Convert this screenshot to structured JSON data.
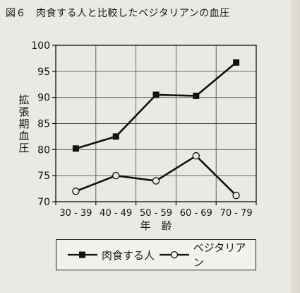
{
  "figure": {
    "number": "図６",
    "title": "肉食する人と比較したベジタリアンの血圧"
  },
  "chart_data": {
    "type": "line",
    "title": "肉食する人と比較したベジタリアンの血圧",
    "xlabel": "年　齢",
    "ylabel": "拡張期血圧",
    "categories": [
      "30 - 39",
      "40 - 49",
      "50 - 59",
      "60 - 69",
      "70 - 79"
    ],
    "ylim": [
      70,
      100
    ],
    "yticks": [
      70,
      75,
      80,
      85,
      90,
      95,
      100
    ],
    "grid": true,
    "legend_position": "bottom",
    "series": [
      {
        "name": "肉食する人",
        "marker": "filled-square",
        "values": [
          80.2,
          82.5,
          90.5,
          90.3,
          96.7
        ]
      },
      {
        "name": "ベジタリアン",
        "marker": "open-circle",
        "values": [
          72.0,
          75.0,
          74.0,
          78.8,
          71.2
        ]
      }
    ]
  },
  "colors": {
    "line": "#111111",
    "grid": "#555555",
    "background": "#ebe9e3"
  }
}
